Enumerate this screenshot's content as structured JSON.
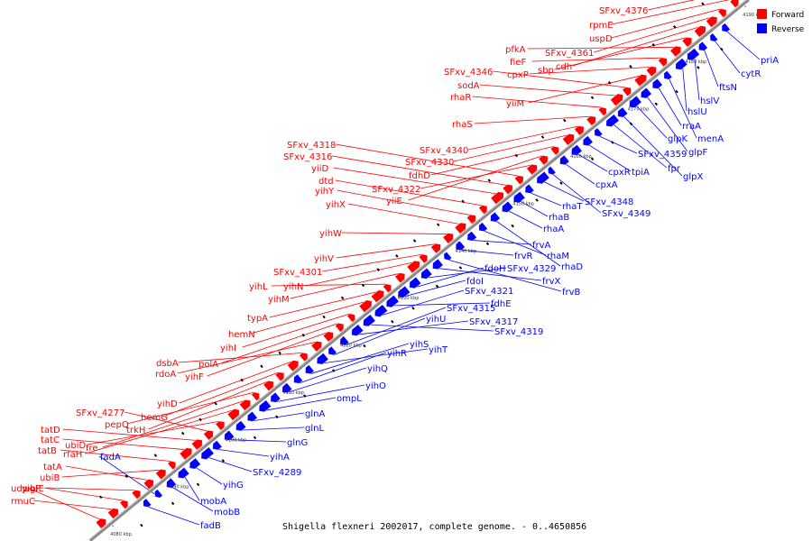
{
  "caption": "Shigella flexneri 2002017, complete genome. - 0..4650856",
  "legend": [
    {
      "label": "Forward",
      "color": "#ff0000"
    },
    {
      "label": "Reverse",
      "color": "#0000ff"
    }
  ],
  "colors": {
    "forward": "#ff0000",
    "reverse": "#0000ff",
    "axis": "#888888",
    "small_gene": "#000000"
  },
  "ticks": [
    "4080 kbp",
    "4090 kbp",
    "4100 kbp",
    "4110 kbp",
    "4120 kbp",
    "4130 kbp",
    "4140 kbp",
    "4150 kbp",
    "4160 kbp",
    "4170 kbp",
    "4180 kbp",
    "4190 kbp"
  ],
  "forward_labels": [
    "udp",
    "rmuC",
    "yigP",
    "ubiE",
    "tatA",
    "ubiB",
    "tatB",
    "tatC",
    "tatD",
    "SFxv_4277",
    "ubiD",
    "rfaH",
    "fre",
    "pepQ",
    "trkH",
    "hemG",
    "yihD",
    "dsbA",
    "rdoA",
    "yihF",
    "polA",
    "yihI",
    "hemN",
    "typA",
    "yihL",
    "yihM",
    "yihN",
    "SFxv_4301",
    "yihV",
    "yihW",
    "yihX",
    "yihY",
    "dtd",
    "yiiD",
    "SFxv_4316",
    "SFxv_4318",
    "SFxv_4322",
    "yiiE",
    "fdhD",
    "SFxv_4330",
    "SFxv_4340",
    "rhaS",
    "rhaR",
    "sodA",
    "SFxv_4346",
    "yiiM",
    "cpxP",
    "fieF",
    "pfkA",
    "sbp",
    "cdh",
    "SFxv_4361",
    "uspD",
    "rpmE",
    "SFxv_4376"
  ],
  "reverse_labels": [
    "fadB",
    "fadA",
    "mobB",
    "mobA",
    "yihG",
    "SFxv_4289",
    "yihA",
    "glnG",
    "glnL",
    "glnA",
    "ompL",
    "yihO",
    "yihQ",
    "yihR",
    "yihS",
    "yihT",
    "yihU",
    "SFxv_4315",
    "SFxv_4317",
    "SFxv_4319",
    "SFxv_4321",
    "fdhE",
    "fdoI",
    "fdoH",
    "SFxv_4329",
    "frvX",
    "frvB",
    "frvR",
    "frvA",
    "rhaM",
    "rhaD",
    "rhaA",
    "rhaB",
    "rhaT",
    "SFxv_4348",
    "SFxv_4349",
    "cpxA",
    "cpxR",
    "tpiA",
    "SFxv_4359",
    "fpr",
    "glpX",
    "glpK",
    "glpF",
    "rraA",
    "menA",
    "hslU",
    "hslV",
    "ftsN",
    "cytR",
    "priA"
  ]
}
